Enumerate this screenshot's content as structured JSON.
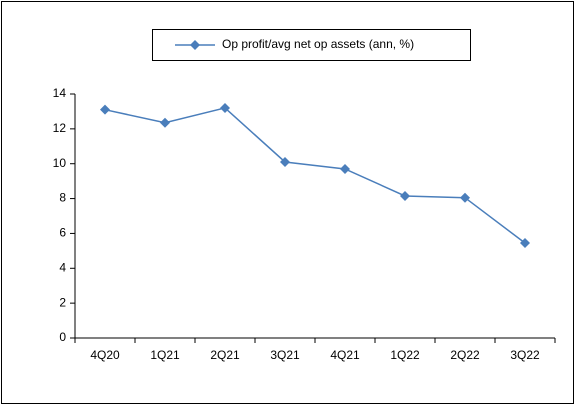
{
  "chart_data": {
    "type": "line",
    "categories": [
      "4Q20",
      "1Q21",
      "2Q21",
      "3Q21",
      "4Q21",
      "1Q22",
      "2Q22",
      "3Q22"
    ],
    "series": [
      {
        "name": "Op profit/avg net op assets (ann, %)",
        "color": "#4a7ebb",
        "values": [
          13.1,
          12.35,
          13.2,
          10.1,
          9.7,
          8.15,
          8.05,
          5.45
        ]
      }
    ],
    "ylim": [
      0,
      14
    ],
    "yticks": [
      0,
      2,
      4,
      6,
      8,
      10,
      12,
      14
    ],
    "grid": false,
    "legend": "top"
  }
}
